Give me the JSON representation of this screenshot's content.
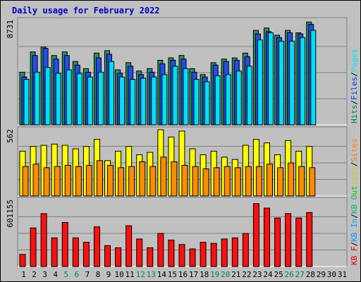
{
  "chart_data": {
    "type": "bar",
    "title": "Daily usage for February 2022",
    "x": [
      "1",
      "2",
      "3",
      "4",
      "5",
      "6",
      "7",
      "8",
      "9",
      "10",
      "11",
      "12",
      "13",
      "14",
      "15",
      "16",
      "17",
      "18",
      "19",
      "20",
      "21",
      "22",
      "23",
      "24",
      "25",
      "26",
      "27",
      "28",
      "29",
      "30",
      "31"
    ],
    "weekend_days": [
      "5",
      "6",
      "12",
      "13",
      "19",
      "20",
      "26",
      "27"
    ],
    "panels": [
      {
        "id": "top",
        "max_label": "8731",
        "ymax": 8731,
        "legend": [
          {
            "text": "Hits",
            "color": "#008040"
          },
          {
            "text": "/",
            "color": "#000000"
          },
          {
            "text": "Files",
            "color": "#0040ff"
          },
          {
            "text": "/",
            "color": "#000000"
          },
          {
            "text": "Pages",
            "color": "#00e0ff"
          }
        ],
        "series": [
          {
            "name": "Hits",
            "color": "#2e8b68",
            "values": [
              4400,
              6100,
              6500,
              5800,
              6100,
              5300,
              4700,
              6000,
              6200,
              4600,
              5200,
              4500,
              4700,
              5400,
              5600,
              5800,
              4700,
              4200,
              5200,
              5500,
              5600,
              6000,
              7900,
              8100,
              7500,
              7900,
              7700,
              8600,
              0,
              0,
              0
            ]
          },
          {
            "name": "Files",
            "color": "#2050e8",
            "values": [
              4000,
              5800,
              6400,
              5500,
              5800,
              5000,
              4400,
              5600,
              5900,
              4300,
              4900,
              4200,
              4400,
              5100,
              5400,
              5500,
              4400,
              4000,
              5000,
              5300,
              5400,
              5700,
              7600,
              7800,
              7300,
              7700,
              7600,
              8400,
              0,
              0,
              0
            ]
          },
          {
            "name": "Pages",
            "color": "#00e0f8",
            "values": [
              3800,
              4400,
              4800,
              4300,
              4600,
              4300,
              4000,
              4400,
              5300,
              4000,
              3800,
              3900,
              4000,
              4200,
              4900,
              4700,
              3800,
              3600,
              4100,
              4200,
              4500,
              4900,
              7100,
              7700,
              7000,
              7000,
              7300,
              7900,
              0,
              0,
              0
            ]
          }
        ]
      },
      {
        "id": "mid",
        "max_label": "562",
        "ymax": 562,
        "legend": [
          {
            "text": "Visits",
            "color": "#d0d000"
          },
          {
            "text": "/",
            "color": "#000000"
          },
          {
            "text": "Sites",
            "color": "#ff8000"
          }
        ],
        "series": [
          {
            "name": "Visits",
            "color": "#ffff00",
            "values": [
              380,
              420,
              430,
              440,
              430,
              400,
              420,
              480,
              300,
              380,
              420,
              350,
              370,
              562,
              500,
              550,
              400,
              350,
              380,
              330,
              310,
              430,
              480,
              450,
              350,
              470,
              380,
              420,
              0,
              0,
              0
            ]
          },
          {
            "name": "Sites",
            "color": "#ff8c00",
            "values": [
              250,
              270,
              240,
              250,
              260,
              250,
              260,
              300,
              260,
              240,
              250,
              290,
              250,
              330,
              290,
              260,
              250,
              230,
              240,
              250,
              240,
              250,
              250,
              270,
              240,
              280,
              250,
              240,
              0,
              0,
              0
            ]
          }
        ]
      },
      {
        "id": "bot",
        "max_label": "601155",
        "ymax": 601155,
        "legend": [
          {
            "text": "KB F",
            "color": "#e00000"
          },
          {
            "text": "/",
            "color": "#000000"
          },
          {
            "text": "KB In",
            "color": "#00a0ff"
          },
          {
            "text": "/",
            "color": "#000000"
          },
          {
            "text": "KB Out",
            "color": "#00c060"
          }
        ],
        "series": [
          {
            "name": "KB F",
            "color": "#ff1010",
            "values": [
              110000,
              350000,
              480000,
              260000,
              400000,
              260000,
              220000,
              360000,
              190000,
              170000,
              370000,
              250000,
              170000,
              300000,
              240000,
              200000,
              160000,
              220000,
              210000,
              250000,
              260000,
              300000,
              570000,
              530000,
              440000,
              480000,
              440000,
              490000,
              0,
              0,
              0
            ]
          }
        ]
      }
    ]
  }
}
